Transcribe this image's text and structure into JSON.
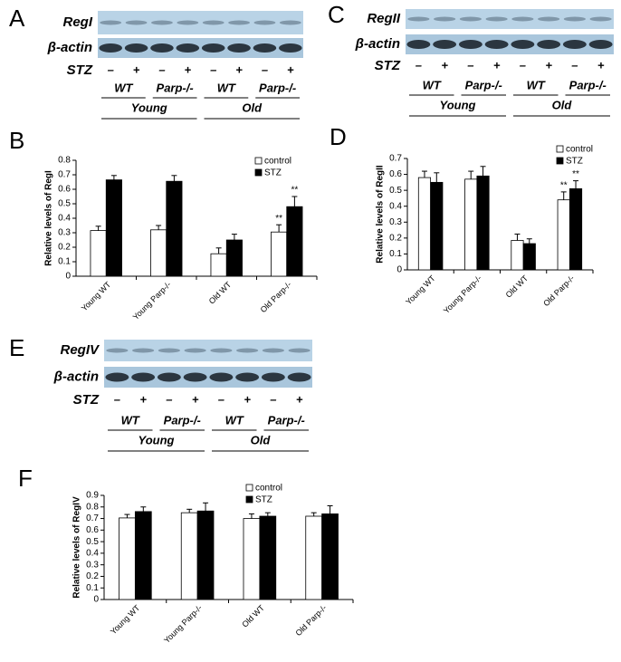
{
  "blots": [
    {
      "panel": "A",
      "protein": "RegI",
      "loading": "β-actin",
      "treatment_label": "STZ",
      "treatments": [
        "–",
        "+",
        "–",
        "+",
        "–",
        "+",
        "–",
        "+"
      ],
      "genotypes": [
        "WT",
        "Parp-/-",
        "WT",
        "Parp-/-"
      ],
      "ages": [
        "Young",
        "Old"
      ]
    },
    {
      "panel": "C",
      "protein": "RegII",
      "loading": "β-actin",
      "treatment_label": "STZ",
      "treatments": [
        "–",
        "+",
        "–",
        "+",
        "–",
        "+",
        "–",
        "+"
      ],
      "genotypes": [
        "WT",
        "Parp-/-",
        "WT",
        "Parp-/-"
      ],
      "ages": [
        "Young",
        "Old"
      ]
    },
    {
      "panel": "E",
      "protein": "RegIV",
      "loading": "β-actin",
      "treatment_label": "STZ",
      "treatments": [
        "–",
        "+",
        "–",
        "+",
        "–",
        "+",
        "–",
        "+"
      ],
      "genotypes": [
        "WT",
        "Parp-/-",
        "WT",
        "Parp-/-"
      ],
      "ages": [
        "Young",
        "Old"
      ]
    }
  ],
  "chart_data": [
    {
      "panel": "B",
      "type": "bar",
      "ylabel": "Relative levels of RegI",
      "categories": [
        "Young WT",
        "Young Parp-/-",
        "Old WT",
        "Old Parp-/-"
      ],
      "series": [
        {
          "name": "control",
          "color": "#ffffff",
          "values": [
            0.315,
            0.32,
            0.155,
            0.305
          ],
          "errors": [
            0.03,
            0.03,
            0.04,
            0.05
          ],
          "significance": [
            null,
            null,
            null,
            "**"
          ]
        },
        {
          "name": "STZ",
          "color": "#000000",
          "values": [
            0.665,
            0.655,
            0.25,
            0.48
          ],
          "errors": [
            0.03,
            0.04,
            0.04,
            0.07
          ],
          "significance": [
            null,
            null,
            null,
            "**"
          ]
        }
      ],
      "ylim": [
        0,
        0.8
      ],
      "yticks": [
        0,
        0.1,
        0.2,
        0.3,
        0.4,
        0.5,
        0.6,
        0.7,
        0.8
      ],
      "legend": "upper right"
    },
    {
      "panel": "D",
      "type": "bar",
      "ylabel": "Relative levels of RegII",
      "categories": [
        "Young WT",
        "Young Parp-/-",
        "Old WT",
        "Old Parp-/-"
      ],
      "series": [
        {
          "name": "control",
          "color": "#ffffff",
          "values": [
            0.58,
            0.57,
            0.185,
            0.44
          ],
          "errors": [
            0.04,
            0.05,
            0.04,
            0.05
          ],
          "significance": [
            null,
            null,
            null,
            "**"
          ]
        },
        {
          "name": "STZ",
          "color": "#000000",
          "values": [
            0.55,
            0.59,
            0.165,
            0.51
          ],
          "errors": [
            0.06,
            0.06,
            0.03,
            0.05
          ],
          "significance": [
            null,
            null,
            null,
            "**"
          ]
        }
      ],
      "ylim": [
        0,
        0.7
      ],
      "yticks": [
        0,
        0.1,
        0.2,
        0.3,
        0.4,
        0.5,
        0.6,
        0.7
      ],
      "legend": "upper right"
    },
    {
      "panel": "F",
      "type": "bar",
      "ylabel": "Relative levels of RegIV",
      "categories": [
        "Young WT",
        "Young Parp-/-",
        "Old WT",
        "Old Parp-/-"
      ],
      "series": [
        {
          "name": "control",
          "color": "#ffffff",
          "values": [
            0.705,
            0.75,
            0.7,
            0.72
          ],
          "errors": [
            0.03,
            0.03,
            0.04,
            0.03
          ]
        },
        {
          "name": "STZ",
          "color": "#000000",
          "values": [
            0.76,
            0.765,
            0.72,
            0.74
          ],
          "errors": [
            0.04,
            0.07,
            0.03,
            0.07
          ]
        }
      ],
      "ylim": [
        0,
        0.9
      ],
      "yticks": [
        0,
        0.1,
        0.2,
        0.3,
        0.4,
        0.5,
        0.6,
        0.7,
        0.8,
        0.9
      ],
      "legend": "upper right"
    }
  ]
}
